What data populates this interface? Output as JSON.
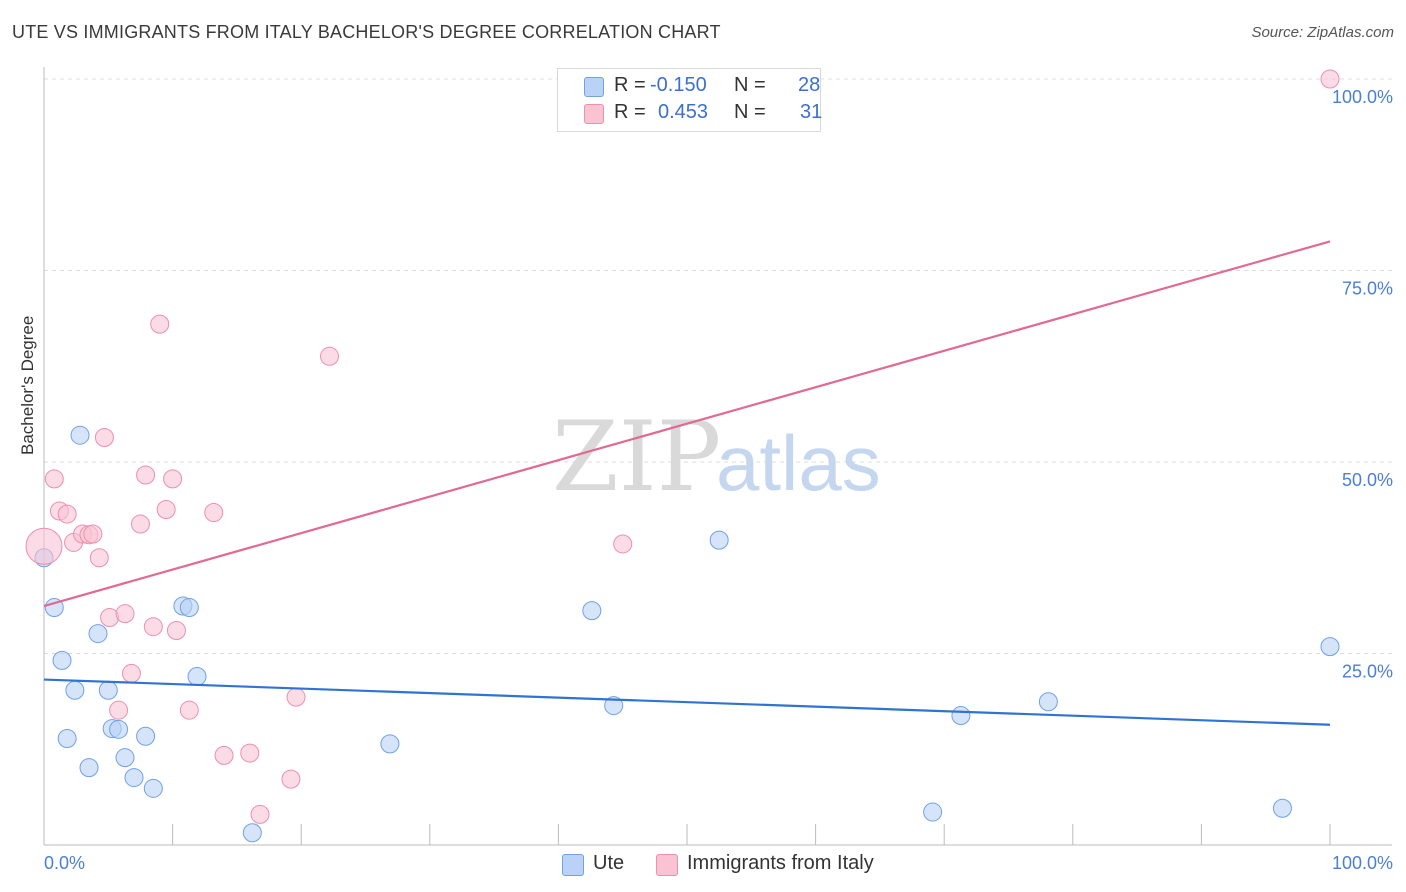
{
  "header": {
    "title": "UTE VS IMMIGRANTS FROM ITALY BACHELOR'S DEGREE CORRELATION CHART",
    "source": "Source: ZipAtlas.com"
  },
  "legend": {
    "rows": [
      {
        "r_label": "R =",
        "r_value": "-0.150",
        "n_label": "N =",
        "n_value": "28",
        "color": "#b9d2f5"
      },
      {
        "r_label": "R =",
        "r_value": "0.453",
        "n_label": "N =",
        "n_value": "31",
        "color": "#f9c3d3"
      }
    ]
  },
  "bottom_legend": {
    "items": [
      {
        "label": "Ute",
        "color": "#b9d2f5"
      },
      {
        "label": "Immigrants from Italy",
        "color": "#f9c3d3"
      }
    ]
  },
  "watermark": {
    "zip": "ZIP",
    "atlas": "atlas"
  },
  "chart_data": {
    "type": "scatter",
    "title": "UTE VS IMMIGRANTS FROM ITALY BACHELOR'S DEGREE CORRELATION CHART",
    "xlabel": "",
    "ylabel": "Bachelor's Degree",
    "xlim": [
      0,
      100
    ],
    "ylim": [
      0,
      100
    ],
    "x_tick_labels": [
      "0.0%",
      "100.0%"
    ],
    "y_ticks": [
      25,
      50,
      75,
      100
    ],
    "y_tick_labels": [
      "25.0%",
      "50.0%",
      "75.0%",
      "100.0%"
    ],
    "grid": true,
    "series": [
      {
        "name": "Ute",
        "color": "#6fa1e8",
        "fill": "#b9d2f5",
        "line_color": "#2f73d3",
        "trend": {
          "x": [
            0,
            100
          ],
          "y": [
            21.6,
            15.7
          ]
        },
        "points": [
          {
            "x": 0.0,
            "y": 37.5
          },
          {
            "x": 0.8,
            "y": 31.0
          },
          {
            "x": 2.8,
            "y": 53.5
          },
          {
            "x": 1.4,
            "y": 24.1
          },
          {
            "x": 4.2,
            "y": 27.6
          },
          {
            "x": 2.4,
            "y": 20.2
          },
          {
            "x": 5.0,
            "y": 20.2
          },
          {
            "x": 1.8,
            "y": 13.9
          },
          {
            "x": 5.3,
            "y": 15.2
          },
          {
            "x": 5.8,
            "y": 15.1
          },
          {
            "x": 7.9,
            "y": 14.2
          },
          {
            "x": 3.5,
            "y": 10.1
          },
          {
            "x": 6.3,
            "y": 11.4
          },
          {
            "x": 7.0,
            "y": 8.8
          },
          {
            "x": 8.5,
            "y": 7.4
          },
          {
            "x": 10.8,
            "y": 31.2
          },
          {
            "x": 11.3,
            "y": 31.0
          },
          {
            "x": 11.9,
            "y": 22.0
          },
          {
            "x": 16.2,
            "y": 1.6
          },
          {
            "x": 26.9,
            "y": 13.2
          },
          {
            "x": 42.6,
            "y": 30.6
          },
          {
            "x": 44.3,
            "y": 18.2
          },
          {
            "x": 52.5,
            "y": 39.8
          },
          {
            "x": 71.3,
            "y": 16.9
          },
          {
            "x": 78.1,
            "y": 18.7
          },
          {
            "x": 69.1,
            "y": 4.3
          },
          {
            "x": 96.3,
            "y": 4.8
          },
          {
            "x": 100.0,
            "y": 25.9
          }
        ]
      },
      {
        "name": "Immigrants from Italy",
        "color": "#ee8fac",
        "fill": "#f9c3d3",
        "line_color": "#e16a91",
        "trend": {
          "x": [
            0,
            100
          ],
          "y": [
            31.2,
            78.8
          ]
        },
        "points": [
          {
            "x": 0.0,
            "y": 39.0
          },
          {
            "x": 0.8,
            "y": 47.8
          },
          {
            "x": 1.2,
            "y": 43.6
          },
          {
            "x": 1.8,
            "y": 43.2
          },
          {
            "x": 2.3,
            "y": 39.5
          },
          {
            "x": 3.0,
            "y": 40.6
          },
          {
            "x": 3.5,
            "y": 40.5
          },
          {
            "x": 3.8,
            "y": 40.6
          },
          {
            "x": 4.3,
            "y": 37.5
          },
          {
            "x": 4.7,
            "y": 53.2
          },
          {
            "x": 5.1,
            "y": 29.7
          },
          {
            "x": 5.8,
            "y": 17.6
          },
          {
            "x": 6.3,
            "y": 30.2
          },
          {
            "x": 6.8,
            "y": 22.4
          },
          {
            "x": 7.5,
            "y": 41.9
          },
          {
            "x": 7.9,
            "y": 48.3
          },
          {
            "x": 8.5,
            "y": 28.5
          },
          {
            "x": 9.0,
            "y": 68.0
          },
          {
            "x": 9.5,
            "y": 43.8
          },
          {
            "x": 10.0,
            "y": 47.8
          },
          {
            "x": 10.3,
            "y": 28.0
          },
          {
            "x": 11.3,
            "y": 17.6
          },
          {
            "x": 13.2,
            "y": 43.4
          },
          {
            "x": 14.0,
            "y": 11.7
          },
          {
            "x": 16.0,
            "y": 12.0
          },
          {
            "x": 16.8,
            "y": 4.0
          },
          {
            "x": 19.2,
            "y": 8.6
          },
          {
            "x": 19.6,
            "y": 19.3
          },
          {
            "x": 22.2,
            "y": 63.8
          },
          {
            "x": 45.0,
            "y": 39.3
          },
          {
            "x": 100.0,
            "y": 100.0
          }
        ]
      }
    ]
  }
}
